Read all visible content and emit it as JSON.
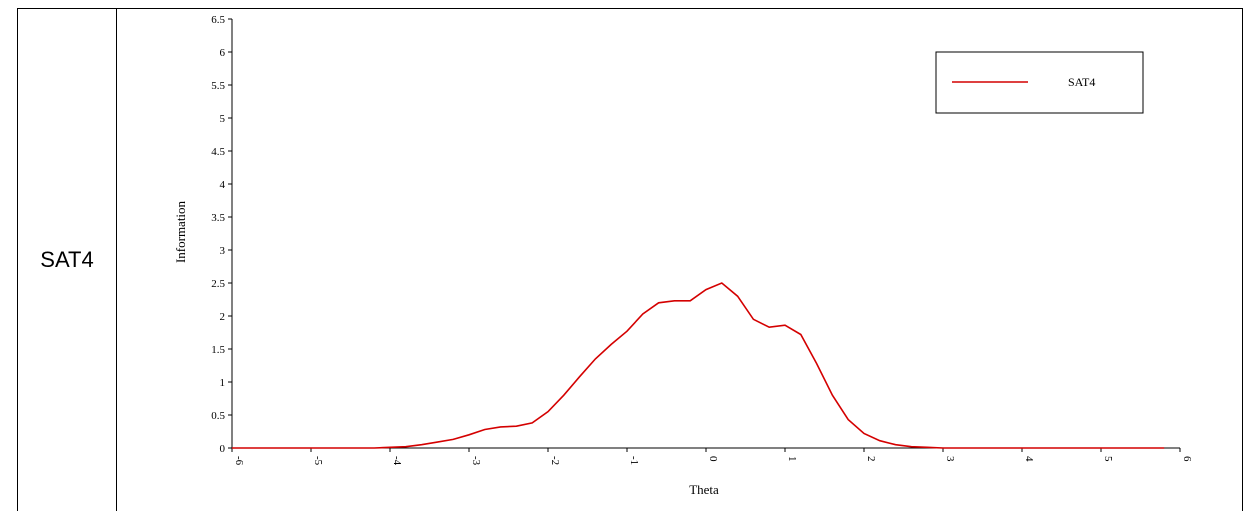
{
  "row_label": "SAT4",
  "colors": {
    "series": "#d40000",
    "axis": "#000000"
  },
  "chart_data": {
    "type": "line",
    "xlabel": "Theta",
    "ylabel": "Information",
    "xlim": [
      -6,
      6
    ],
    "ylim": [
      0,
      6.5
    ],
    "xticks": [
      -6,
      -5,
      -4,
      -3,
      -2,
      -1,
      0,
      1,
      2,
      3,
      4,
      5,
      6
    ],
    "yticks": [
      0,
      0.5,
      1,
      1.5,
      2,
      2.5,
      3,
      3.5,
      4,
      4.5,
      5,
      5.5,
      6,
      6.5
    ],
    "grid": false,
    "legend": "top-right",
    "series": [
      {
        "name": "SAT4",
        "color": "#d40000",
        "x": [
          -6,
          -5,
          -4.2,
          -4.0,
          -3.8,
          -3.6,
          -3.4,
          -3.2,
          -3.0,
          -2.8,
          -2.6,
          -2.4,
          -2.2,
          -2.0,
          -1.8,
          -1.6,
          -1.4,
          -1.2,
          -1.0,
          -0.8,
          -0.6,
          -0.4,
          -0.2,
          0.0,
          0.2,
          0.4,
          0.6,
          0.8,
          1.0,
          1.2,
          1.4,
          1.6,
          1.8,
          2.0,
          2.2,
          2.4,
          2.6,
          2.8,
          3.0,
          4.0,
          5.0,
          5.8
        ],
        "y": [
          0,
          0,
          0,
          0.01,
          0.02,
          0.05,
          0.09,
          0.13,
          0.2,
          0.28,
          0.32,
          0.33,
          0.38,
          0.55,
          0.8,
          1.08,
          1.35,
          1.57,
          1.77,
          2.03,
          2.2,
          2.23,
          2.23,
          2.4,
          2.5,
          2.3,
          1.95,
          1.83,
          1.86,
          1.72,
          1.28,
          0.8,
          0.43,
          0.22,
          0.11,
          0.05,
          0.02,
          0.01,
          0,
          0,
          0,
          0
        ]
      }
    ]
  }
}
